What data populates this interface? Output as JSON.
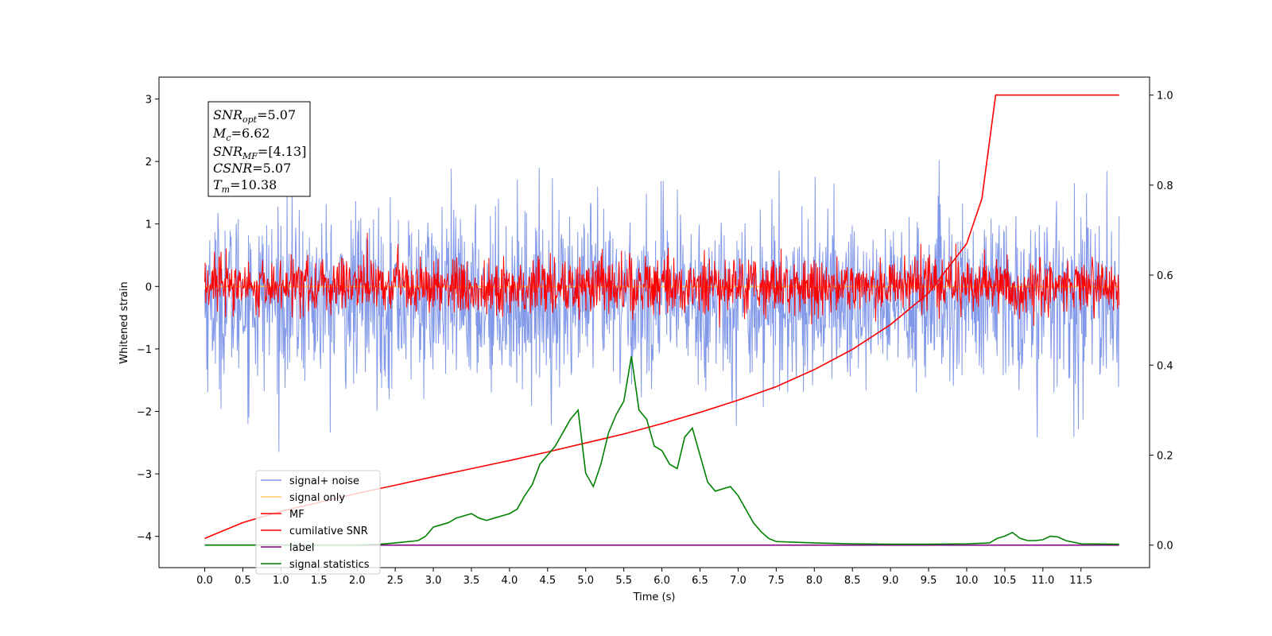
{
  "chart_data": {
    "type": "line",
    "xlabel": "Time (s)",
    "ylabel": "Whitened strain",
    "xlim": [
      -0.6,
      12.4
    ],
    "ylim": [
      -4.5,
      3.35
    ],
    "y2lim": [
      -0.05,
      1.04
    ],
    "x_ticks": [
      "0.0",
      "0.5",
      "1.0",
      "1.5",
      "2.0",
      "2.5",
      "3.0",
      "3.5",
      "4.0",
      "4.5",
      "5.0",
      "5.5",
      "6.0",
      "6.5",
      "7.0",
      "7.5",
      "8.0",
      "8.5",
      "9.0",
      "9.5",
      "10.0",
      "10.5",
      "11.0",
      "11.5"
    ],
    "y_ticks": [
      "3",
      "2",
      "1",
      "0",
      "−1",
      "−2",
      "−3",
      "−4"
    ],
    "y2_ticks": [
      "1.0",
      "0.8",
      "0.6",
      "0.4",
      "0.2",
      "0.0"
    ],
    "annotation": {
      "snr_opt": {
        "base": "SNR",
        "sub": "opt",
        "value": "=5.07"
      },
      "mc": {
        "base": "M",
        "sub": "c",
        "value": "=6.62"
      },
      "snr_mf": {
        "base": "SNR",
        "sub": "MF",
        "value": "=[4.13]"
      },
      "csnr": {
        "base": "CSNR",
        "value": "=5.07"
      },
      "tm": {
        "base": "T",
        "sub": "m",
        "value": "=10.38"
      }
    },
    "series": [
      {
        "name": "signal+ noise",
        "color": "#7b93e8",
        "kind": "noise",
        "mean": -0.2,
        "std": 0.7,
        "x_range": [
          0.0,
          12.0
        ]
      },
      {
        "name": "signal only",
        "color": "#ffcc66",
        "kind": "flat",
        "value": 0.0,
        "x_range": [
          0.0,
          12.0
        ]
      },
      {
        "name": "MF",
        "color": "#ff0000",
        "kind": "noise",
        "mean": 0.0,
        "std": 0.22,
        "x_range": [
          0.0,
          12.0
        ]
      },
      {
        "name": "cumilative SNR",
        "color": "#ff0000",
        "axis": "right",
        "x": [
          0.0,
          0.5,
          1.0,
          1.5,
          2.0,
          2.5,
          3.0,
          3.5,
          4.0,
          4.5,
          5.0,
          5.5,
          6.0,
          6.5,
          7.0,
          7.5,
          8.0,
          8.5,
          9.0,
          9.5,
          10.0,
          10.2,
          10.38,
          10.5,
          11.0,
          11.5,
          12.0
        ],
        "y": [
          0.015,
          0.05,
          0.075,
          0.095,
          0.115,
          0.133,
          0.152,
          0.17,
          0.188,
          0.207,
          0.227,
          0.247,
          0.27,
          0.295,
          0.322,
          0.352,
          0.39,
          0.435,
          0.49,
          0.56,
          0.67,
          0.77,
          1.0,
          1.0,
          1.0,
          1.0,
          1.0
        ]
      },
      {
        "name": "label",
        "color": "#800080",
        "axis": "right",
        "x": [
          0.0,
          12.0
        ],
        "y": [
          0.0,
          0.0
        ]
      },
      {
        "name": "signal statistics",
        "color": "#008000",
        "axis": "right",
        "x": [
          0.0,
          0.5,
          1.0,
          1.5,
          2.0,
          2.3,
          2.5,
          2.8,
          2.9,
          3.0,
          3.1,
          3.2,
          3.3,
          3.4,
          3.5,
          3.6,
          3.7,
          3.8,
          3.9,
          4.0,
          4.1,
          4.2,
          4.3,
          4.4,
          4.5,
          4.6,
          4.7,
          4.8,
          4.9,
          5.0,
          5.1,
          5.2,
          5.3,
          5.4,
          5.5,
          5.6,
          5.7,
          5.8,
          5.9,
          6.0,
          6.1,
          6.2,
          6.3,
          6.4,
          6.5,
          6.6,
          6.7,
          6.8,
          6.9,
          7.0,
          7.1,
          7.2,
          7.3,
          7.4,
          7.5,
          8.0,
          8.5,
          9.0,
          9.5,
          10.0,
          10.3,
          10.4,
          10.5,
          10.6,
          10.7,
          10.8,
          10.9,
          11.0,
          11.1,
          11.2,
          11.3,
          11.5,
          12.0
        ],
        "y": [
          0.0,
          0.0,
          0.0,
          0.0,
          0.0,
          0.002,
          0.005,
          0.01,
          0.02,
          0.04,
          0.045,
          0.05,
          0.06,
          0.065,
          0.07,
          0.06,
          0.055,
          0.06,
          0.065,
          0.07,
          0.08,
          0.11,
          0.135,
          0.18,
          0.2,
          0.22,
          0.25,
          0.28,
          0.3,
          0.16,
          0.13,
          0.18,
          0.25,
          0.29,
          0.32,
          0.42,
          0.3,
          0.28,
          0.22,
          0.21,
          0.18,
          0.17,
          0.24,
          0.26,
          0.2,
          0.14,
          0.12,
          0.125,
          0.13,
          0.11,
          0.08,
          0.05,
          0.03,
          0.015,
          0.008,
          0.005,
          0.003,
          0.002,
          0.002,
          0.003,
          0.005,
          0.015,
          0.02,
          0.028,
          0.015,
          0.01,
          0.01,
          0.012,
          0.02,
          0.018,
          0.01,
          0.003,
          0.002
        ]
      }
    ],
    "legend_position": "lower-left"
  }
}
